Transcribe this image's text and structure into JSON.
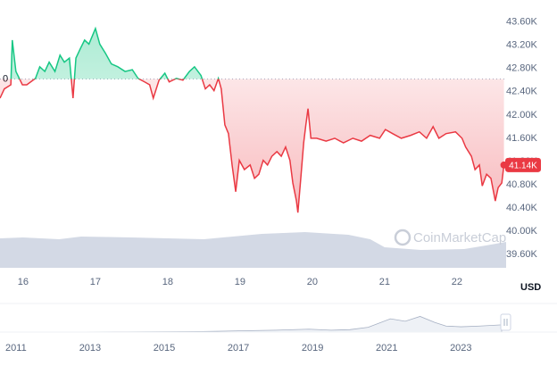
{
  "chart_data": [
    {
      "type": "line",
      "x": [
        15.68,
        15.74,
        15.83,
        15.85,
        15.9,
        15.99,
        16.05,
        16.17,
        16.23,
        16.3,
        16.36,
        16.44,
        16.51,
        16.57,
        16.64,
        16.69,
        16.73,
        16.79,
        16.85,
        16.91,
        16.96,
        17.0,
        17.06,
        17.14,
        17.22,
        17.31,
        17.41,
        17.51,
        17.59,
        17.68,
        17.75,
        17.8,
        17.88,
        17.96,
        18.02,
        18.12,
        18.21,
        18.3,
        18.37,
        18.46,
        18.52,
        18.58,
        18.64,
        18.7,
        18.74,
        18.79,
        18.84,
        18.89,
        18.94,
        18.99,
        19.06,
        19.14,
        19.2,
        19.26,
        19.32,
        19.38,
        19.44,
        19.51,
        19.57,
        19.63,
        19.69,
        19.73,
        19.78,
        19.8,
        19.84,
        19.88,
        19.91,
        19.94,
        19.98,
        20.06,
        20.19,
        20.31,
        20.43,
        20.56,
        20.68,
        20.8,
        20.93,
        21.01,
        21.11,
        21.23,
        21.36,
        21.48,
        21.58,
        21.67,
        21.75,
        21.85,
        21.98,
        22.07,
        22.12,
        22.2,
        22.25,
        22.31,
        22.35,
        22.41,
        22.47,
        22.53,
        22.57,
        22.62,
        22.65
      ],
      "values": [
        42.29,
        42.45,
        42.52,
        43.29,
        42.75,
        42.52,
        42.52,
        42.63,
        42.83,
        42.75,
        42.91,
        42.75,
        43.03,
        42.91,
        42.98,
        42.29,
        42.98,
        43.14,
        43.29,
        43.22,
        43.37,
        43.49,
        43.22,
        43.06,
        42.88,
        42.83,
        42.75,
        42.78,
        42.63,
        42.57,
        42.52,
        42.29,
        42.6,
        42.72,
        42.57,
        42.63,
        42.6,
        42.75,
        42.83,
        42.68,
        42.45,
        42.52,
        42.42,
        42.63,
        42.45,
        41.83,
        41.68,
        41.14,
        40.68,
        41.22,
        41.06,
        41.14,
        40.91,
        40.98,
        41.22,
        41.14,
        41.29,
        41.37,
        41.29,
        41.45,
        41.22,
        40.83,
        40.52,
        40.32,
        40.91,
        41.52,
        41.83,
        42.11,
        41.6,
        41.6,
        41.55,
        41.6,
        41.52,
        41.6,
        41.55,
        41.65,
        41.6,
        41.75,
        41.68,
        41.6,
        41.65,
        41.71,
        41.6,
        41.8,
        41.6,
        41.68,
        41.71,
        41.6,
        41.45,
        41.29,
        41.06,
        41.14,
        40.78,
        40.98,
        40.91,
        40.52,
        40.75,
        40.83,
        41.14
      ],
      "colors": {
        "up": "#16c784",
        "down": "#ea3943"
      },
      "baseline": {
        "value": 42.62,
        "label": "0"
      },
      "annotation": {
        "value": 41.14,
        "label": "41.14K"
      },
      "xlim": [
        15.68,
        22.68
      ],
      "xticks": [
        16,
        17,
        18,
        19,
        20,
        21,
        22
      ],
      "ylim": [
        39.37,
        43.98
      ],
      "yticks": [
        {
          "value": 43.6,
          "label": "43.60K"
        },
        {
          "value": 43.2,
          "label": "43.20K"
        },
        {
          "value": 42.8,
          "label": "42.80K"
        },
        {
          "value": 42.4,
          "label": "42.40K"
        },
        {
          "value": 42.0,
          "label": "42.00K"
        },
        {
          "value": 41.6,
          "label": "41.60K"
        },
        {
          "value": 41.2,
          "label": "41.20K"
        },
        {
          "value": 40.8,
          "label": "40.80K"
        },
        {
          "value": 40.4,
          "label": "40.40K"
        },
        {
          "value": 40.0,
          "label": "40.00K"
        },
        {
          "value": 39.6,
          "label": "39.60K"
        }
      ],
      "y_unit": "USD",
      "watermark": "CoinMarketCap",
      "volume": {
        "x": [
          15.68,
          16.0,
          16.5,
          16.8,
          17.5,
          18.5,
          18.9,
          19.3,
          19.9,
          20.5,
          20.8,
          21.0,
          21.5,
          22.1,
          22.4,
          22.68
        ],
        "values": [
          66,
          68,
          64,
          70,
          68,
          64,
          70,
          76,
          80,
          74,
          64,
          46,
          40,
          42,
          50,
          58
        ],
        "color": "#d3d9e5"
      },
      "y2lim": [
        0,
        100
      ]
    },
    {
      "type": "area",
      "x": [
        2010.57,
        2012,
        2014,
        2016,
        2017,
        2018,
        2018.9,
        2019.5,
        2020,
        2020.5,
        2021.1,
        2021.5,
        2021.9,
        2022.3,
        2022.6,
        2023,
        2023.5,
        2024.1
      ],
      "values": [
        0,
        0,
        1,
        2,
        5,
        8,
        12,
        8,
        10,
        20,
        55,
        45,
        65,
        40,
        25,
        22,
        25,
        30
      ],
      "xlim": [
        2010.57,
        2024.1
      ],
      "xticks": [
        2011,
        2013,
        2015,
        2017,
        2019,
        2021,
        2023
      ],
      "ylim": [
        0,
        100
      ],
      "color": "#a6b0c3"
    }
  ]
}
